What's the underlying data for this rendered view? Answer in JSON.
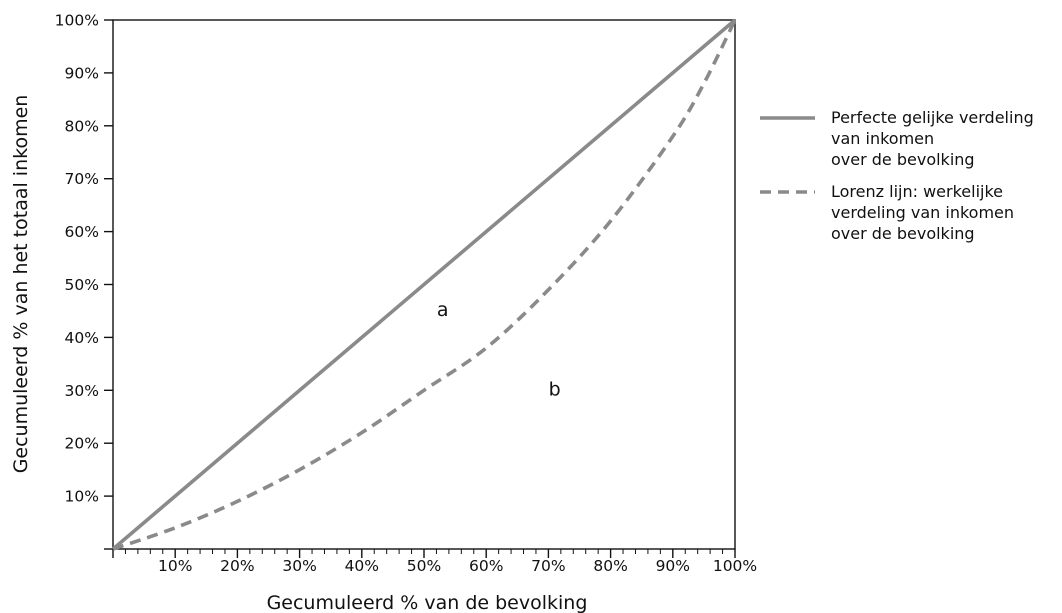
{
  "chart_data": {
    "type": "line",
    "title": "",
    "xlabel": "Gecumuleerd % van de bevolking",
    "ylabel": "Gecumuleerd % van het totaal inkomen",
    "xlim": [
      0,
      100
    ],
    "ylim": [
      0,
      100
    ],
    "x_ticks": [
      "10%",
      "20%",
      "30%",
      "40%",
      "50%",
      "60%",
      "70%",
      "80%",
      "90%",
      "100%"
    ],
    "y_ticks": [
      "10%",
      "20%",
      "30%",
      "40%",
      "50%",
      "60%",
      "70%",
      "80%",
      "90%",
      "100%"
    ],
    "grid": false,
    "legend_position": "right",
    "series": [
      {
        "name": "Perfecte gelijke verdeling van inkomen over de bevolking",
        "legend_lines": [
          "Perfecte gelijke verdeling",
          "van inkomen",
          "over de bevolking"
        ],
        "style": "solid",
        "color": "#8a8a8a",
        "x": [
          0,
          100
        ],
        "y": [
          0,
          100
        ]
      },
      {
        "name": "Lorenz lijn: werkelijke verdeling van inkomen over de bevolking",
        "legend_lines": [
          "Lorenz lijn: werkelijke",
          "verdeling van inkomen",
          "over de bevolking"
        ],
        "style": "dashed",
        "color": "#8a8a8a",
        "x": [
          0,
          10,
          20,
          30,
          40,
          50,
          60,
          70,
          80,
          90,
          95,
          100
        ],
        "y": [
          0,
          4,
          9,
          15,
          22,
          30,
          38,
          49,
          62,
          78,
          88,
          100
        ]
      }
    ],
    "annotations": [
      {
        "text": "a",
        "x": 53,
        "y": 44
      },
      {
        "text": "b",
        "x": 71,
        "y": 29
      }
    ]
  }
}
